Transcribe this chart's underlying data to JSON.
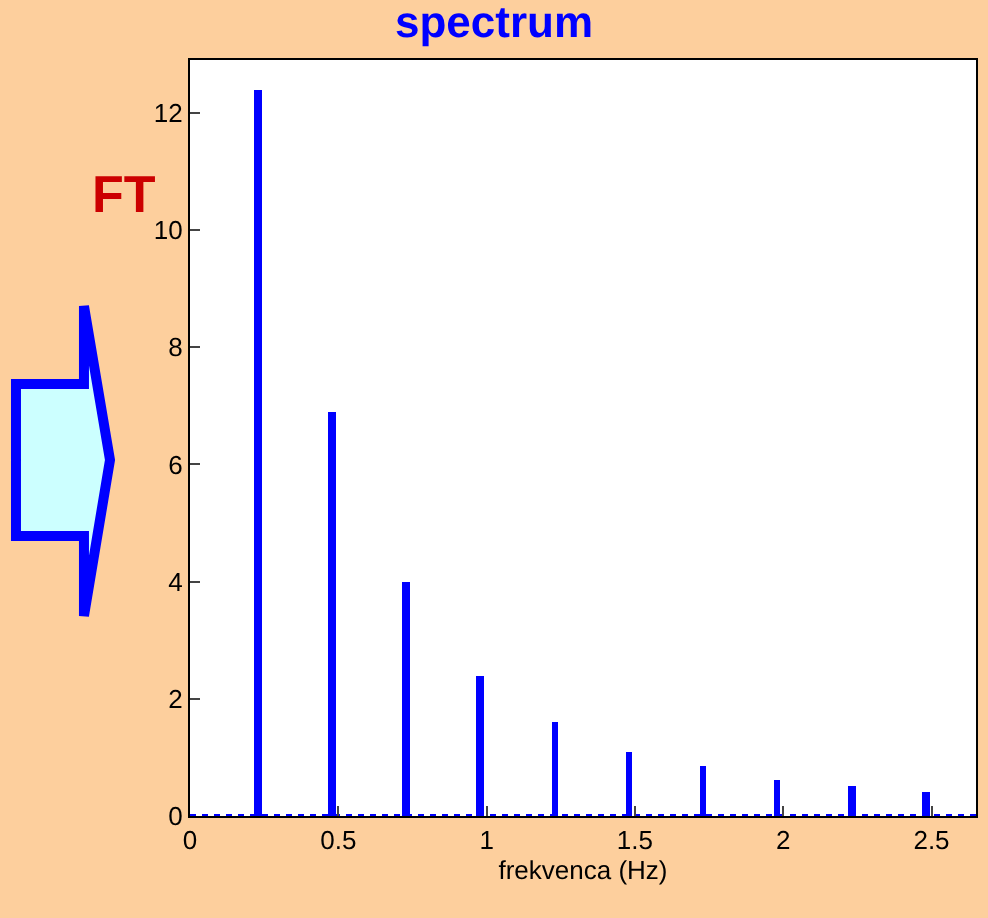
{
  "chart_data": {
    "type": "bar",
    "title": "spectrum",
    "xlabel": "frekvenca (Hz)",
    "x": [
      0.23,
      0.48,
      0.73,
      0.98,
      1.23,
      1.48,
      1.73,
      1.98,
      2.23,
      2.48
    ],
    "values": [
      12.4,
      6.9,
      4.0,
      2.4,
      1.6,
      1.1,
      0.85,
      0.6,
      0.5,
      0.4
    ],
    "color": "#0000ff",
    "xlim": [
      0,
      2.65
    ],
    "xticks": [
      0,
      0.5,
      1,
      1.5,
      2,
      2.5
    ],
    "ylim": [
      0,
      12.9
    ],
    "yticks": [
      0,
      2,
      4,
      6,
      8,
      10,
      12
    ],
    "annotations": [
      "FT"
    ],
    "ref_lines": [
      {
        "axis": "y",
        "value": 0,
        "color": "#0000ff",
        "line_style": "dotted"
      }
    ]
  }
}
